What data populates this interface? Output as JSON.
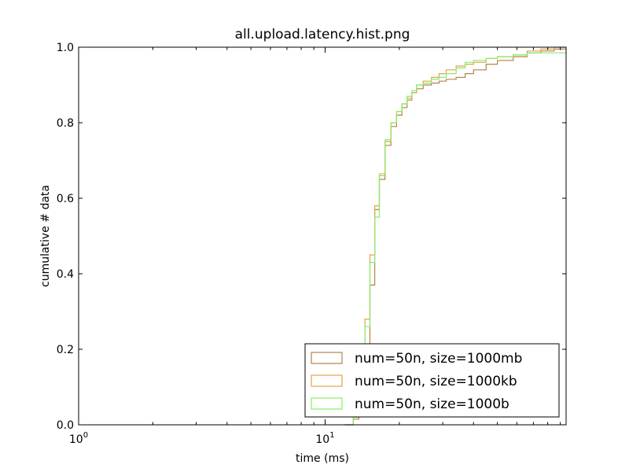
{
  "chart_data": {
    "type": "line",
    "step": true,
    "cumulative": true,
    "title": "all.upload.latency.hist.png",
    "xlabel": "time (ms)",
    "ylabel": "cumulative # data",
    "xscale": "log",
    "xlim": [
      1,
      95
    ],
    "ylim": [
      0,
      1.0
    ],
    "x_ticks": [
      {
        "value": 1,
        "base": "10",
        "exp": "0"
      },
      {
        "value": 10,
        "base": "10",
        "exp": "1"
      }
    ],
    "y_ticks": [
      "0.0",
      "0.2",
      "0.4",
      "0.6",
      "0.8",
      "1.0"
    ],
    "legend_position": "lower-right",
    "series": [
      {
        "name": "num=50n, size=1000mb",
        "color": "#b5844a",
        "x": [
          12,
          13,
          13.7,
          14.5,
          15.2,
          15.9,
          16.6,
          17.5,
          18.5,
          19.5,
          20.5,
          21.5,
          22.5,
          23.5,
          25,
          27,
          29,
          31,
          34,
          37,
          40,
          45,
          50,
          58,
          66,
          75,
          85,
          95
        ],
        "y": [
          0.0,
          0.015,
          0.06,
          0.21,
          0.37,
          0.57,
          0.65,
          0.74,
          0.79,
          0.82,
          0.84,
          0.86,
          0.88,
          0.89,
          0.9,
          0.905,
          0.91,
          0.915,
          0.92,
          0.93,
          0.94,
          0.955,
          0.965,
          0.975,
          0.985,
          0.99,
          0.995,
          0.995
        ]
      },
      {
        "name": "num=50n, size=1000kb",
        "color": "#e0a44e",
        "x": [
          12,
          13,
          13.7,
          14.5,
          15.2,
          15.9,
          16.6,
          17.5,
          18.5,
          19.5,
          20.5,
          21.5,
          22.5,
          23.5,
          25,
          27,
          29,
          31,
          34,
          37,
          40,
          45,
          50,
          58,
          66,
          75,
          85,
          95
        ],
        "y": [
          0.0,
          0.02,
          0.09,
          0.28,
          0.45,
          0.58,
          0.66,
          0.75,
          0.8,
          0.83,
          0.85,
          0.865,
          0.88,
          0.9,
          0.91,
          0.92,
          0.93,
          0.94,
          0.95,
          0.955,
          0.96,
          0.97,
          0.975,
          0.98,
          0.99,
          0.995,
          1.0,
          1.0
        ]
      },
      {
        "name": "num=50n, size=1000b",
        "color": "#88ee66",
        "x": [
          12,
          13,
          13.7,
          14.5,
          15.2,
          15.9,
          16.6,
          17.5,
          18.5,
          19.5,
          20.5,
          21.5,
          22.5,
          23.5,
          25,
          27,
          29,
          31,
          34,
          37,
          40,
          45,
          50,
          58,
          66,
          75,
          85,
          95
        ],
        "y": [
          0.0,
          0.02,
          0.07,
          0.26,
          0.43,
          0.55,
          0.665,
          0.755,
          0.8,
          0.83,
          0.85,
          0.87,
          0.885,
          0.9,
          0.905,
          0.915,
          0.92,
          0.93,
          0.945,
          0.96,
          0.965,
          0.97,
          0.975,
          0.98,
          0.985,
          0.985,
          0.985,
          0.985
        ]
      }
    ]
  }
}
